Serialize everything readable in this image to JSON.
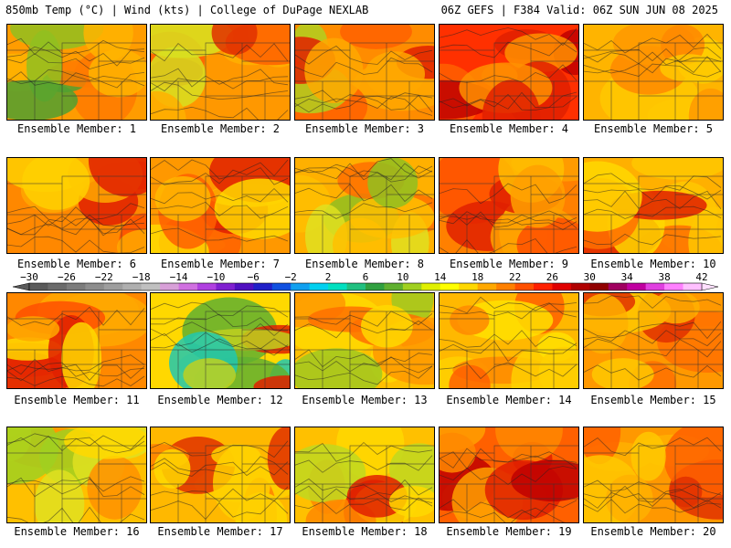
{
  "header": {
    "left": "850mb Temp (°C) | Wind (kts) | College of DuPage NEXLAB",
    "right": "06Z GEFS | F384 Valid: 06Z SUN JUN 08 2025"
  },
  "member_label_prefix": "Ensemble Member: ",
  "members": [
    1,
    2,
    3,
    4,
    5,
    6,
    7,
    8,
    9,
    10,
    11,
    12,
    13,
    14,
    15,
    16,
    17,
    18,
    19,
    20
  ],
  "colorbar": {
    "tick_labels": [
      "-30",
      "-26",
      "-22",
      "-18",
      "-14",
      "-10",
      "-6",
      "-2",
      "2",
      "6",
      "10",
      "14",
      "18",
      "22",
      "26",
      "30",
      "34",
      "38",
      "42"
    ],
    "values": [
      -30,
      -28,
      -26,
      -24,
      -22,
      -20,
      -18,
      -16,
      -14,
      -12,
      -10,
      -8,
      -6,
      -4,
      -2,
      0,
      2,
      4,
      6,
      8,
      10,
      12,
      14,
      16,
      18,
      20,
      22,
      24,
      26,
      28,
      30,
      32,
      34,
      36,
      38,
      40,
      42
    ],
    "colors": [
      "#5a5a5a",
      "#6b6b6b",
      "#7c7c7c",
      "#8d8d8d",
      "#9e9e9e",
      "#afafaf",
      "#c0c0c0",
      "#d8a0d8",
      "#d070e0",
      "#b040e0",
      "#8020d0",
      "#5010c0",
      "#2020c8",
      "#1050e0",
      "#10a0f0",
      "#00d0f0",
      "#00e0c0",
      "#20c080",
      "#30a040",
      "#60b030",
      "#a0d020",
      "#e0f000",
      "#ffff00",
      "#ffd800",
      "#ffa800",
      "#ff8000",
      "#ff5000",
      "#ff2000",
      "#e00000",
      "#b00000",
      "#900000",
      "#a00060",
      "#c000a0",
      "#e040e0",
      "#ff80ff",
      "#ffc0ff",
      "#ffe0ff"
    ]
  },
  "panel_colors": {
    "1": [
      "#ff9c00",
      "#ffb400",
      "#ff7a00",
      "#90c020",
      "#50a030"
    ],
    "2": [
      "#ff9800",
      "#ffb000",
      "#ff6000",
      "#d8e020",
      "#e03000"
    ],
    "3": [
      "#ff8c00",
      "#ffa800",
      "#ff6000",
      "#b0d020",
      "#e02000"
    ],
    "4": [
      "#ff3000",
      "#e02000",
      "#ff6000",
      "#c00000",
      "#ff9000"
    ],
    "5": [
      "#ffb400",
      "#ffc800",
      "#ff8800",
      "#ffd000",
      "#ff9800"
    ],
    "6": [
      "#ff8800",
      "#ffa800",
      "#ff5000",
      "#e02000",
      "#ffd000"
    ],
    "7": [
      "#ff9800",
      "#ffb800",
      "#ff6000",
      "#e02000",
      "#ffd800"
    ],
    "8": [
      "#ffb000",
      "#ffc000",
      "#ff7000",
      "#90c020",
      "#e0e020"
    ],
    "9": [
      "#ff8000",
      "#ffa000",
      "#ff5000",
      "#e02000",
      "#ffc000"
    ],
    "10": [
      "#ffb000",
      "#ffc800",
      "#ff7000",
      "#e02000",
      "#ffd800"
    ],
    "11": [
      "#ff8800",
      "#ffa800",
      "#ff5000",
      "#e02000",
      "#ffd800"
    ],
    "12": [
      "#ffd800",
      "#c0d020",
      "#60b030",
      "#20c8b0",
      "#e02000"
    ],
    "13": [
      "#ffc000",
      "#ffd800",
      "#ff9800",
      "#a0c820",
      "#ff7000"
    ],
    "14": [
      "#ffb800",
      "#ffd000",
      "#ff8800",
      "#ff6000",
      "#ffe000"
    ],
    "15": [
      "#ff9800",
      "#ffb000",
      "#ff7000",
      "#e03000",
      "#ffc800"
    ],
    "16": [
      "#ffc000",
      "#e0e020",
      "#ff9000",
      "#a0d020",
      "#ffd800"
    ],
    "17": [
      "#ffb800",
      "#ffd000",
      "#ff8000",
      "#e03000",
      "#ffd800"
    ],
    "18": [
      "#ffc000",
      "#ffd800",
      "#ff8800",
      "#c0d820",
      "#e02000"
    ],
    "19": [
      "#ff6000",
      "#ff8800",
      "#e02000",
      "#c00000",
      "#ffa000"
    ],
    "20": [
      "#ff9800",
      "#ffb000",
      "#ff6000",
      "#e03000",
      "#ffc800"
    ]
  }
}
